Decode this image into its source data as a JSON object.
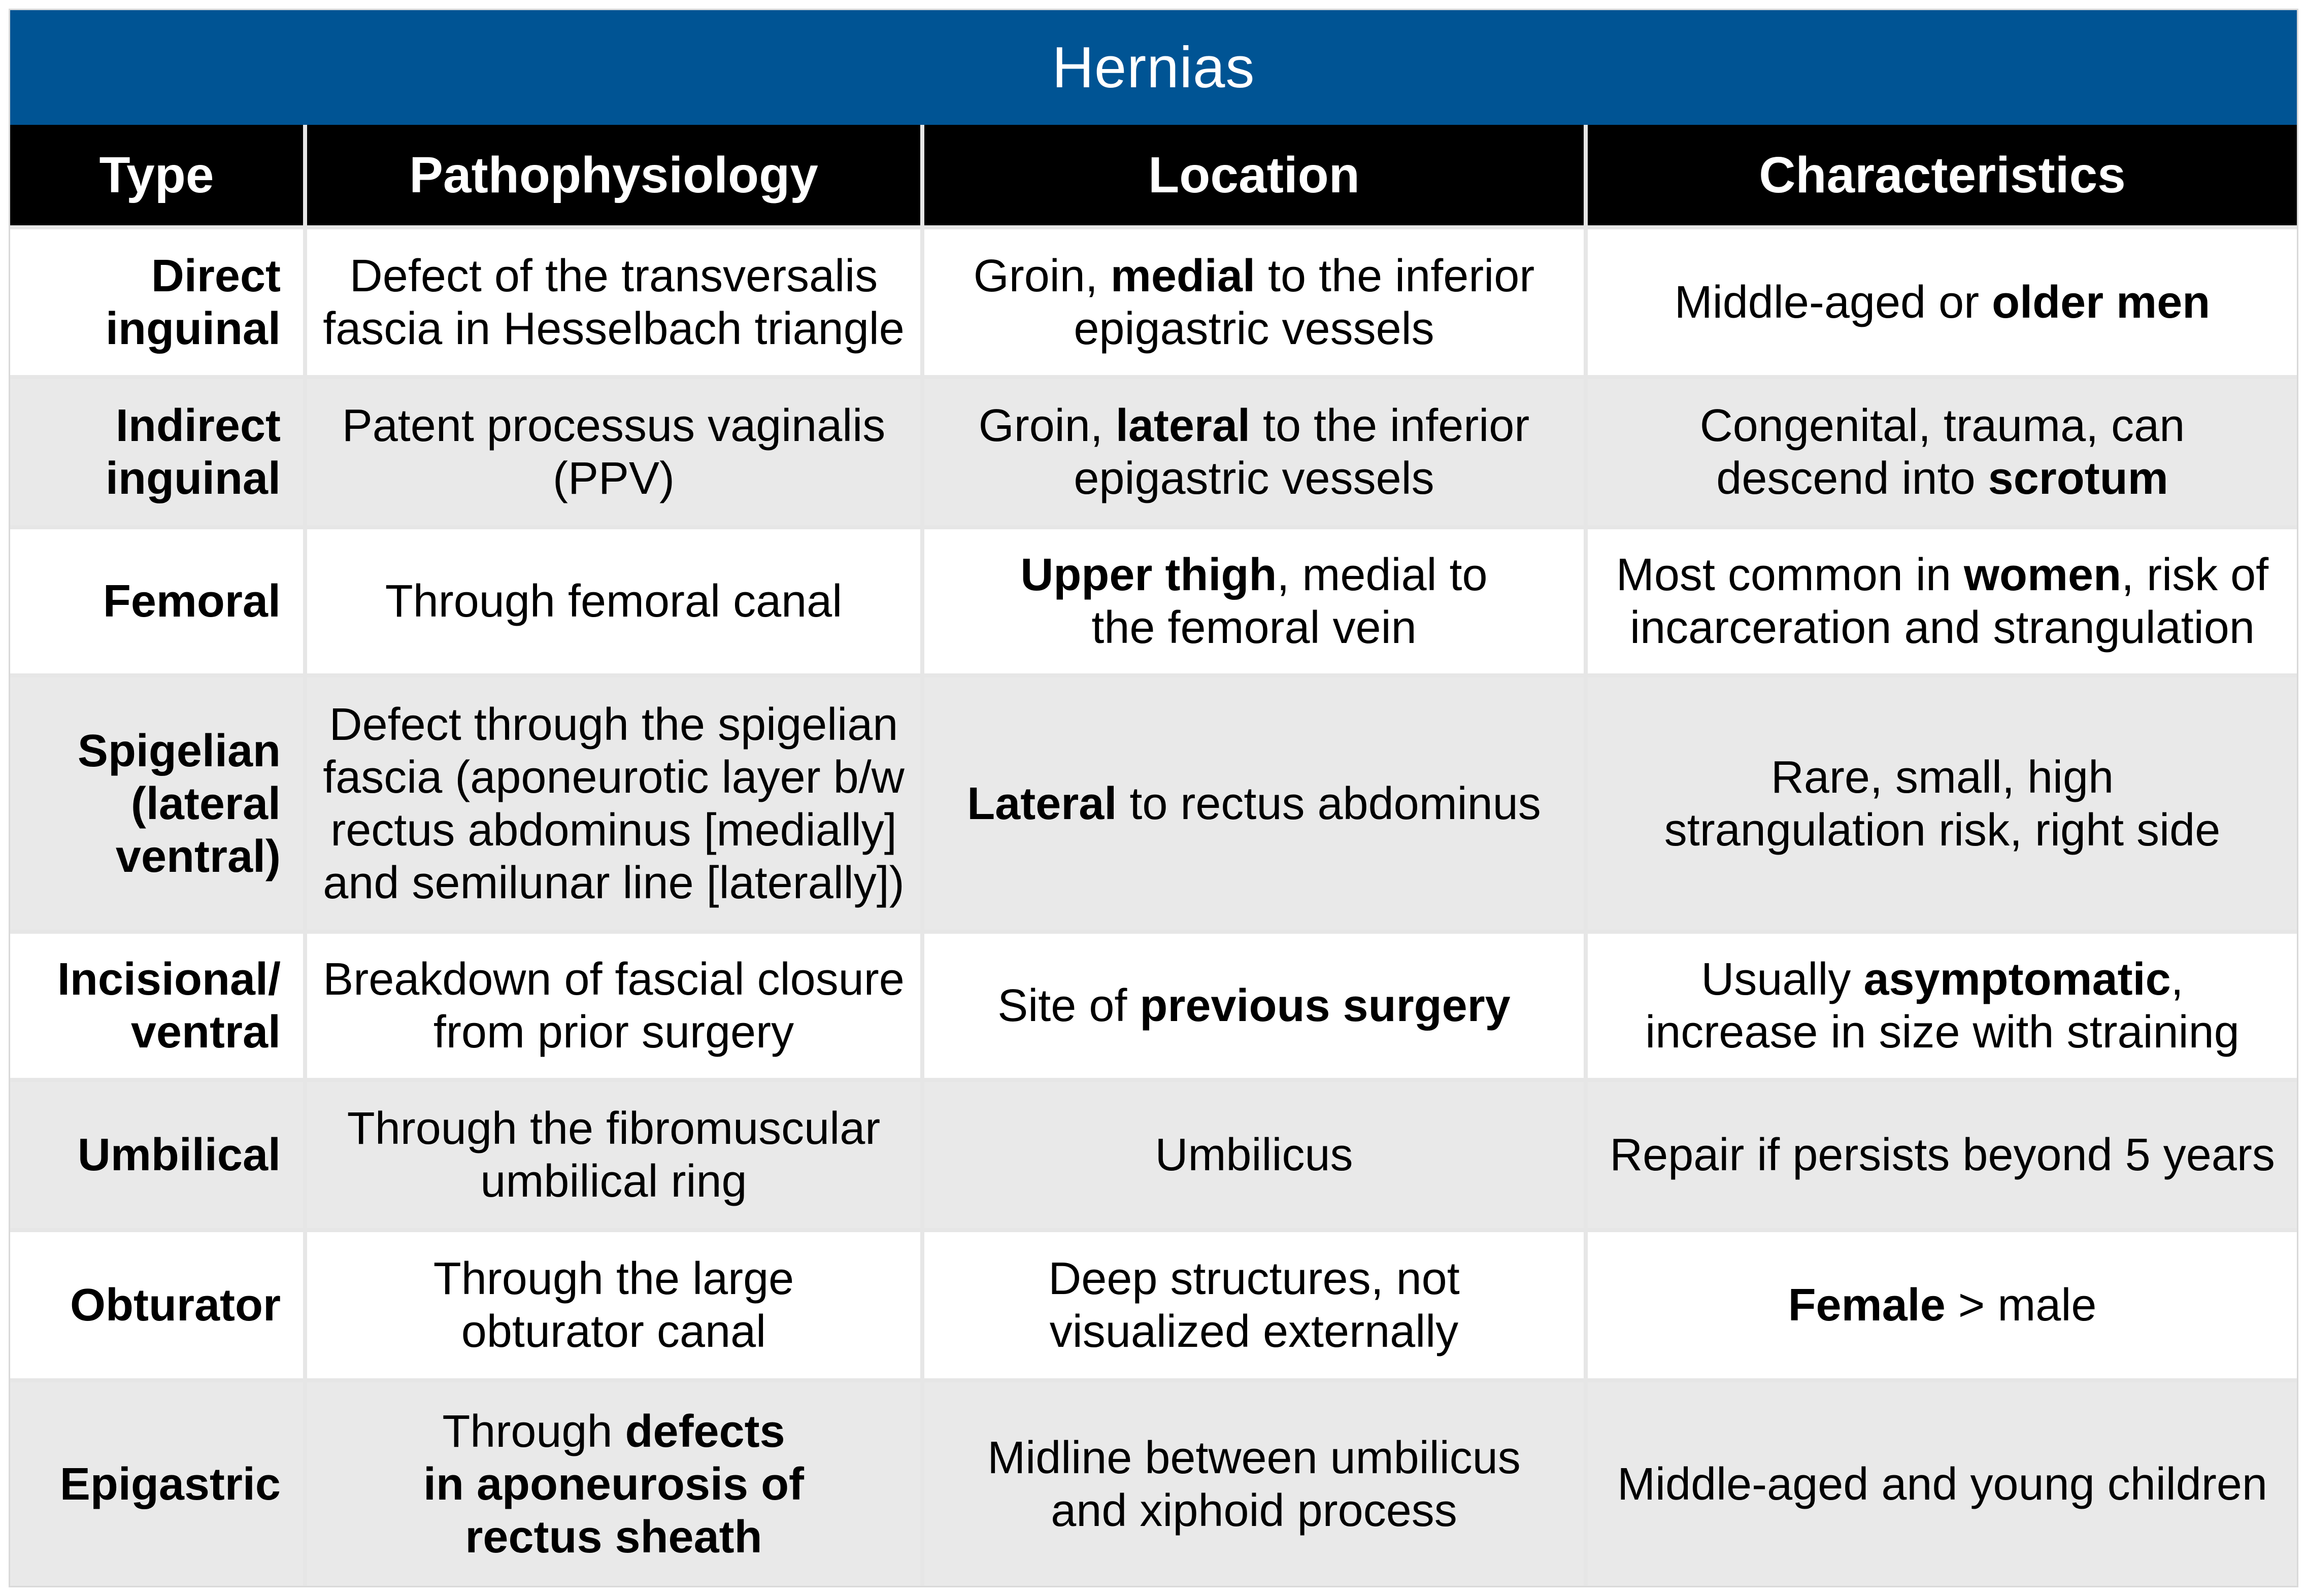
{
  "title": "Hernias",
  "colors": {
    "title_bg": "#005494",
    "header_bg": "#000000",
    "row_shade": "#e9e9e9",
    "grid_line": "#e6e6e6"
  },
  "headers": [
    "Type",
    "Pathophysiology",
    "Location",
    "Characteristics"
  ],
  "rows": [
    {
      "type": "Direct\ninguinal",
      "pathophysiology": [
        {
          "t": "Defect of the transversalis\nfascia in Hesselbach triangle"
        }
      ],
      "location": [
        {
          "t": "Groin, "
        },
        {
          "t": "medial",
          "b": true
        },
        {
          "t": " to the inferior\nepigastric vessels"
        }
      ],
      "characteristics": [
        {
          "t": "Middle-aged or "
        },
        {
          "t": "older men",
          "b": true
        }
      ]
    },
    {
      "type": "Indirect\ninguinal",
      "pathophysiology": [
        {
          "t": "Patent processus vaginalis\n(PPV)"
        }
      ],
      "location": [
        {
          "t": "Groin, "
        },
        {
          "t": "lateral",
          "b": true
        },
        {
          "t": " to the inferior\nepigastric vessels"
        }
      ],
      "characteristics": [
        {
          "t": "Congenital, trauma, can\ndescend into "
        },
        {
          "t": "scrotum",
          "b": true
        }
      ]
    },
    {
      "type": "Femoral",
      "pathophysiology": [
        {
          "t": "Through femoral canal"
        }
      ],
      "location": [
        {
          "t": "Upper thigh",
          "b": true
        },
        {
          "t": ", medial to\nthe femoral vein"
        }
      ],
      "characteristics": [
        {
          "t": "Most common in "
        },
        {
          "t": "women",
          "b": true
        },
        {
          "t": ", risk of\nincarceration and strangulation"
        }
      ]
    },
    {
      "type": "Spigelian\n(lateral\nventral)",
      "pathophysiology": [
        {
          "t": "Defect through the spigelian\nfascia (aponeurotic layer b/w\nrectus abdominus [medially]\nand semilunar line [laterally])"
        }
      ],
      "location": [
        {
          "t": "Lateral",
          "b": true
        },
        {
          "t": " to rectus abdominus"
        }
      ],
      "characteristics": [
        {
          "t": "Rare, small, high\nstrangulation risk, right side"
        }
      ]
    },
    {
      "type": "Incisional/\nventral",
      "pathophysiology": [
        {
          "t": "Breakdown of fascial closure\nfrom prior surgery"
        }
      ],
      "location": [
        {
          "t": "Site of "
        },
        {
          "t": "previous surgery",
          "b": true
        }
      ],
      "characteristics": [
        {
          "t": "Usually "
        },
        {
          "t": "asymptomatic",
          "b": true
        },
        {
          "t": ",\nincrease in size with straining"
        }
      ]
    },
    {
      "type": "Umbilical",
      "pathophysiology": [
        {
          "t": "Through the fibromuscular\numbilical ring"
        }
      ],
      "location": [
        {
          "t": "Umbilicus"
        }
      ],
      "characteristics": [
        {
          "t": "Repair if persists beyond 5 years"
        }
      ]
    },
    {
      "type": "Obturator",
      "pathophysiology": [
        {
          "t": "Through the large\nobturator canal"
        }
      ],
      "location": [
        {
          "t": "Deep structures, not\nvisualized externally"
        }
      ],
      "characteristics": [
        {
          "t": "Female",
          "b": true
        },
        {
          "t": " > male"
        }
      ]
    },
    {
      "type": "Epigastric",
      "pathophysiology": [
        {
          "t": "Through "
        },
        {
          "t": "defects\nin aponeurosis of\nrectus sheath",
          "b": true
        }
      ],
      "location": [
        {
          "t": "Midline between umbilicus\nand xiphoid process"
        }
      ],
      "characteristics": [
        {
          "t": "Middle-aged and young children"
        }
      ]
    }
  ]
}
